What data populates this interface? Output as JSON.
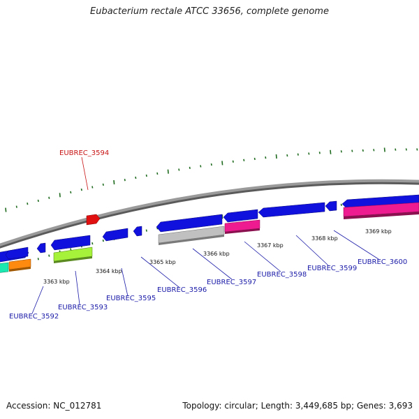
{
  "title": "Eubacterium rectale ATCC 33656, complete genome",
  "accession_text": "Accession: NC_012781",
  "footer_info": "Topology: circular; Length: 3,449,685 bp; Genes: 3,693",
  "colors": {
    "backbone": "#8a8a8a",
    "tick": "#1f6b1f",
    "label_blue": "#1a1aa8",
    "label_red": "#c81414",
    "gene_blue": "#1111dd",
    "gene_red": "#e01010",
    "gene_gray": "#c0c0c0",
    "gene_magenta": "#ee1a90",
    "gene_lime": "#a6f13a",
    "gene_orange": "#ff8a10",
    "gene_teal": "#1ae8b0"
  },
  "scale_labels": [
    "3363 kbp",
    "3364 kbp",
    "3365 kbp",
    "3366 kbp",
    "3367 kbp",
    "3368 kbp",
    "3369 kbp"
  ],
  "gene_labels": [
    {
      "text": "EUBREC_3592",
      "color": "label_blue"
    },
    {
      "text": "EUBREC_3593",
      "color": "label_blue"
    },
    {
      "text": "EUBREC_3594",
      "color": "label_red"
    },
    {
      "text": "EUBREC_3595",
      "color": "label_blue"
    },
    {
      "text": "EUBREC_3596",
      "color": "label_blue"
    },
    {
      "text": "EUBREC_3597",
      "color": "label_blue"
    },
    {
      "text": "EUBREC_3598",
      "color": "label_blue"
    },
    {
      "text": "EUBREC_3599",
      "color": "label_blue"
    },
    {
      "text": "EUBREC_3600",
      "color": "label_blue"
    }
  ]
}
